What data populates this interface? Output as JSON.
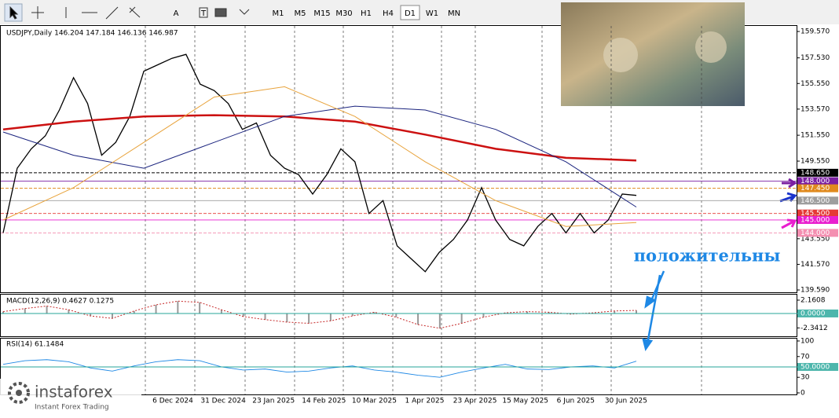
{
  "toolbar": {
    "tools": [
      "A",
      "T"
    ],
    "timeframes": [
      "M1",
      "M5",
      "M15",
      "M30",
      "H1",
      "H4",
      "D1",
      "W1",
      "MN"
    ],
    "active_timeframe": "D1"
  },
  "chart_data": {
    "type": "line",
    "title": "USDJPY,Daily 146.204 147.184 146.136 146.987",
    "ylim": [
      139.41,
      160.06
    ],
    "yticks": [
      {
        "value": 159.57,
        "label": "159.570"
      },
      {
        "value": 157.53,
        "label": "157.530"
      },
      {
        "value": 155.55,
        "label": "155.550"
      },
      {
        "value": 153.57,
        "label": "153.570"
      },
      {
        "value": 151.55,
        "label": "151.550"
      },
      {
        "value": 149.55,
        "label": "149.550"
      },
      {
        "value": 143.55,
        "label": "143.550"
      },
      {
        "value": 141.57,
        "label": "141.570"
      },
      {
        "value": 139.59,
        "label": "139.590"
      }
    ],
    "date_labels": [
      "6 Dec 2024",
      "31 Dec 2024",
      "23 Jan 2025",
      "14 Feb 2025",
      "10 Mar 2025",
      "1 Apr 2025",
      "23 Apr 2025",
      "15 May 2025",
      "6 Jun 2025",
      "30 Jun 2025"
    ],
    "series": [
      {
        "color": "#000000",
        "values": [
          144,
          149,
          150.5,
          151.5,
          153.5,
          156,
          154,
          150,
          151,
          153,
          156.5,
          157,
          157.5,
          157.8,
          155.5,
          155,
          154,
          152,
          152.5,
          150,
          149,
          148.5,
          147,
          148.5,
          150.5,
          149.5,
          145.5,
          146.5,
          143,
          142,
          141,
          142.5,
          143.5,
          145,
          147.5,
          145,
          143.5,
          143,
          144.5,
          145.5,
          144,
          145.5,
          144,
          145,
          147,
          146.9
        ]
      },
      {
        "color": "#cc1111",
        "values": [
          152,
          152.6,
          153,
          153.1,
          153,
          152.6,
          151.6,
          150.5,
          149.8,
          149.6
        ]
      },
      {
        "color": "#1a237e",
        "values": [
          151.8,
          150,
          149,
          151,
          153,
          153.8,
          153.5,
          152,
          149.5,
          146
        ]
      },
      {
        "color": "#e8a33c",
        "values": [
          145,
          147.5,
          151,
          154.5,
          155.3,
          153,
          149.5,
          146.5,
          144.5,
          144.8
        ]
      }
    ],
    "levels": [
      {
        "value": 148.65,
        "label": "148.650",
        "color": "#000000"
      },
      {
        "value": 148,
        "label": "148.000",
        "color": "#7b1fa2"
      },
      {
        "value": 147.45,
        "label": "147.450",
        "color": "#e08a1e"
      },
      {
        "value": 146.5,
        "label": "146.500",
        "color": "#9e9e9e"
      },
      {
        "value": 145.5,
        "label": "145.500",
        "color": "#e53935"
      },
      {
        "value": 145,
        "label": "145.000",
        "color": "#e91ecf"
      },
      {
        "value": 144,
        "label": "144.000",
        "color": "#f48fb1"
      }
    ],
    "annotation": "положительны"
  },
  "macd": {
    "title": "MACD(12,26,9) 0.4627 0.1275",
    "ylim": [
      -3.7,
      3.05
    ],
    "yticks": [
      {
        "value": 2.1608,
        "label": "2.1608"
      },
      {
        "value": 0,
        "label": "0.0000"
      },
      {
        "value": -2.3412,
        "label": "-2.3412"
      }
    ],
    "values": [
      0.3,
      0.8,
      1.2,
      0.6,
      -0.4,
      -0.8,
      0.4,
      1.4,
      2,
      1.8,
      0.6,
      -0.5,
      -1,
      -1.4,
      -1.6,
      -1.2,
      -0.4,
      0.2,
      -0.6,
      -1.8,
      -2.4,
      -1.6,
      -0.6,
      0.1,
      0.3,
      0.2,
      -0.1,
      0.1,
      0.4,
      0.5
    ]
  },
  "rsi": {
    "title": "RSI(14) 61.1484",
    "ylim": [
      -3,
      106
    ],
    "yticks": [
      100,
      70,
      {
        "value": 50,
        "label": "50.0000"
      },
      30,
      0
    ],
    "values": [
      55,
      62,
      64,
      60,
      48,
      42,
      52,
      60,
      64,
      62,
      50,
      44,
      46,
      40,
      42,
      48,
      52,
      44,
      40,
      34,
      30,
      40,
      48,
      55,
      46,
      45,
      50,
      52,
      48,
      61
    ]
  },
  "logo": {
    "name": "instaforex",
    "tagline": "Instant Forex Trading"
  }
}
